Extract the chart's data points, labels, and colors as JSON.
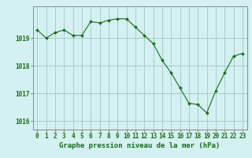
{
  "x": [
    0,
    1,
    2,
    3,
    4,
    5,
    6,
    7,
    8,
    9,
    10,
    11,
    12,
    13,
    14,
    15,
    16,
    17,
    18,
    19,
    20,
    21,
    22,
    23
  ],
  "y": [
    1019.3,
    1019.0,
    1019.2,
    1019.3,
    1019.1,
    1019.1,
    1019.6,
    1019.55,
    1019.65,
    1019.7,
    1019.7,
    1019.4,
    1019.1,
    1018.8,
    1018.2,
    1017.75,
    1017.2,
    1016.65,
    1016.6,
    1016.3,
    1017.1,
    1017.75,
    1018.35,
    1018.45
  ],
  "line_color": "#1a6b1a",
  "marker_color": "#1a6b1a",
  "bg_color": "#d4f0f0",
  "grid_color": "#a0c8c8",
  "axis_color": "#888888",
  "xlabel": "Graphe pression niveau de la mer (hPa)",
  "xlabel_color": "#1a6b1a",
  "ylabel_ticks": [
    1016,
    1017,
    1018,
    1019
  ],
  "ylim": [
    1015.7,
    1020.15
  ],
  "xlim": [
    -0.5,
    23.5
  ],
  "tick_fontsize": 5.5,
  "xlabel_fontsize": 6.5
}
